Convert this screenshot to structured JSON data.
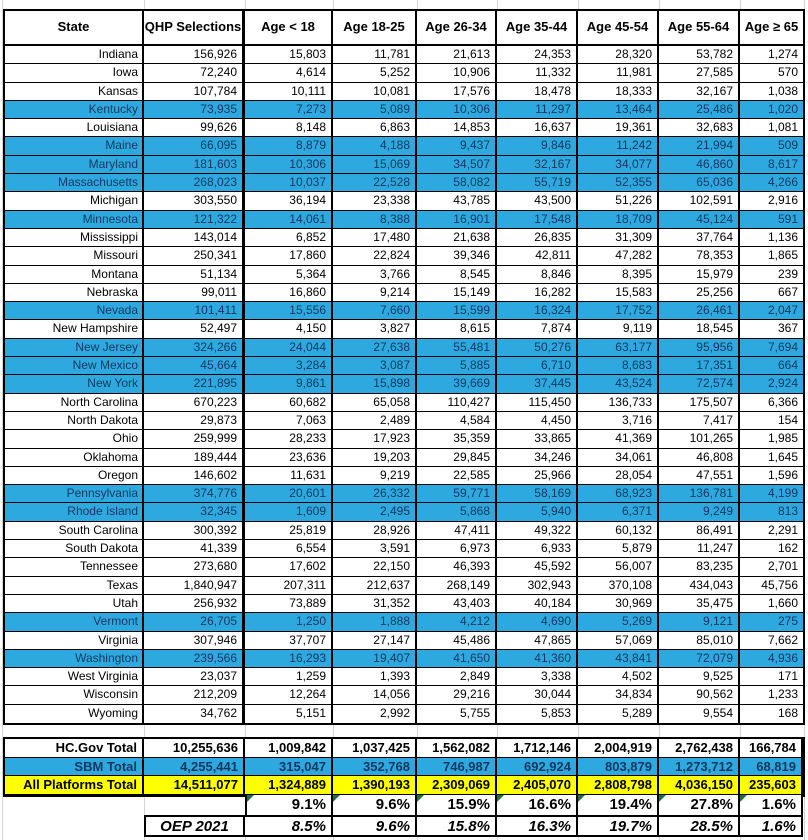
{
  "colors": {
    "highlight_blue": "#2EA9E0",
    "highlight_text": "#17375E",
    "all_platforms_yellow": "#FFFF00",
    "error_flag_green": "#1E7145",
    "gridline_gray": "#D4D4D4"
  },
  "table": {
    "columns": [
      "State",
      "QHP Selections",
      "Age < 18",
      "Age 18-25",
      "Age 26-34",
      "Age 35-44",
      "Age 45-54",
      "Age 55-64",
      "Age ≥ 65"
    ],
    "states": [
      {
        "name": "Indiana",
        "highlight": false,
        "values": [
          "156,926",
          "15,803",
          "11,781",
          "21,613",
          "24,353",
          "28,320",
          "53,782",
          "1,274"
        ]
      },
      {
        "name": "Iowa",
        "highlight": false,
        "values": [
          "72,240",
          "4,614",
          "5,252",
          "10,906",
          "11,332",
          "11,981",
          "27,585",
          "570"
        ]
      },
      {
        "name": "Kansas",
        "highlight": false,
        "values": [
          "107,784",
          "10,111",
          "10,081",
          "17,576",
          "18,478",
          "18,333",
          "32,167",
          "1,038"
        ]
      },
      {
        "name": "Kentucky",
        "highlight": true,
        "values": [
          "73,935",
          "7,273",
          "5,089",
          "10,306",
          "11,297",
          "13,464",
          "25,486",
          "1,020"
        ]
      },
      {
        "name": "Louisiana",
        "highlight": false,
        "values": [
          "99,626",
          "8,148",
          "6,863",
          "14,853",
          "16,637",
          "19,361",
          "32,683",
          "1,081"
        ]
      },
      {
        "name": "Maine",
        "highlight": true,
        "values": [
          "66,095",
          "8,879",
          "4,188",
          "9,437",
          "9,846",
          "11,242",
          "21,994",
          "509"
        ]
      },
      {
        "name": "Maryland",
        "highlight": true,
        "values": [
          "181,603",
          "10,306",
          "15,069",
          "34,507",
          "32,167",
          "34,077",
          "46,860",
          "8,617"
        ]
      },
      {
        "name": "Massachusetts",
        "highlight": true,
        "values": [
          "268,023",
          "10,037",
          "22,528",
          "58,082",
          "55,719",
          "52,355",
          "65,036",
          "4,266"
        ]
      },
      {
        "name": "Michigan",
        "highlight": false,
        "values": [
          "303,550",
          "36,194",
          "23,338",
          "43,785",
          "43,500",
          "51,226",
          "102,591",
          "2,916"
        ]
      },
      {
        "name": "Minnesota",
        "highlight": true,
        "values": [
          "121,322",
          "14,061",
          "8,388",
          "16,901",
          "17,548",
          "18,709",
          "45,124",
          "591"
        ]
      },
      {
        "name": "Mississippi",
        "highlight": false,
        "values": [
          "143,014",
          "6,852",
          "17,480",
          "21,638",
          "26,835",
          "31,309",
          "37,764",
          "1,136"
        ]
      },
      {
        "name": "Missouri",
        "highlight": false,
        "values": [
          "250,341",
          "17,860",
          "22,824",
          "39,346",
          "42,811",
          "47,282",
          "78,353",
          "1,865"
        ]
      },
      {
        "name": "Montana",
        "highlight": false,
        "values": [
          "51,134",
          "5,364",
          "3,766",
          "8,545",
          "8,846",
          "8,395",
          "15,979",
          "239"
        ]
      },
      {
        "name": "Nebraska",
        "highlight": false,
        "values": [
          "99,011",
          "16,860",
          "9,214",
          "15,149",
          "16,282",
          "15,583",
          "25,256",
          "667"
        ]
      },
      {
        "name": "Nevada",
        "highlight": true,
        "values": [
          "101,411",
          "15,556",
          "7,660",
          "15,599",
          "16,324",
          "17,752",
          "26,461",
          "2,047"
        ]
      },
      {
        "name": "New Hampshire",
        "highlight": false,
        "values": [
          "52,497",
          "4,150",
          "3,827",
          "8,615",
          "7,874",
          "9,119",
          "18,545",
          "367"
        ]
      },
      {
        "name": "New Jersey",
        "highlight": true,
        "values": [
          "324,266",
          "24,044",
          "27,638",
          "55,481",
          "50,276",
          "63,177",
          "95,956",
          "7,694"
        ]
      },
      {
        "name": "New Mexico",
        "highlight": true,
        "values": [
          "45,664",
          "3,284",
          "3,087",
          "5,885",
          "6,710",
          "8,683",
          "17,351",
          "664"
        ]
      },
      {
        "name": "New York",
        "highlight": true,
        "values": [
          "221,895",
          "9,861",
          "15,898",
          "39,669",
          "37,445",
          "43,524",
          "72,574",
          "2,924"
        ]
      },
      {
        "name": "North Carolina",
        "highlight": false,
        "values": [
          "670,223",
          "60,682",
          "65,058",
          "110,427",
          "115,450",
          "136,733",
          "175,507",
          "6,366"
        ]
      },
      {
        "name": "North Dakota",
        "highlight": false,
        "values": [
          "29,873",
          "7,063",
          "2,489",
          "4,584",
          "4,450",
          "3,716",
          "7,417",
          "154"
        ]
      },
      {
        "name": "Ohio",
        "highlight": false,
        "values": [
          "259,999",
          "28,233",
          "17,923",
          "35,359",
          "33,865",
          "41,369",
          "101,265",
          "1,985"
        ]
      },
      {
        "name": "Oklahoma",
        "highlight": false,
        "values": [
          "189,444",
          "23,636",
          "19,203",
          "29,845",
          "34,246",
          "34,061",
          "46,808",
          "1,645"
        ]
      },
      {
        "name": "Oregon",
        "highlight": false,
        "values": [
          "146,602",
          "11,631",
          "9,219",
          "22,585",
          "25,966",
          "28,054",
          "47,551",
          "1,596"
        ]
      },
      {
        "name": "Pennsylvania",
        "highlight": true,
        "values": [
          "374,776",
          "20,601",
          "26,332",
          "59,771",
          "58,169",
          "68,923",
          "136,781",
          "4,199"
        ]
      },
      {
        "name": "Rhode Island",
        "highlight": true,
        "values": [
          "32,345",
          "1,609",
          "2,495",
          "5,868",
          "5,940",
          "6,371",
          "9,249",
          "813"
        ]
      },
      {
        "name": "South Carolina",
        "highlight": false,
        "values": [
          "300,392",
          "25,819",
          "28,926",
          "47,411",
          "49,322",
          "60,132",
          "86,491",
          "2,291"
        ]
      },
      {
        "name": "South Dakota",
        "highlight": false,
        "values": [
          "41,339",
          "6,554",
          "3,591",
          "6,973",
          "6,933",
          "5,879",
          "11,247",
          "162"
        ]
      },
      {
        "name": "Tennessee",
        "highlight": false,
        "values": [
          "273,680",
          "17,602",
          "22,150",
          "46,393",
          "45,592",
          "56,007",
          "83,235",
          "2,701"
        ]
      },
      {
        "name": "Texas",
        "highlight": false,
        "values": [
          "1,840,947",
          "207,311",
          "212,637",
          "268,149",
          "302,943",
          "370,108",
          "434,043",
          "45,756"
        ]
      },
      {
        "name": "Utah",
        "highlight": false,
        "values": [
          "256,932",
          "73,889",
          "31,352",
          "43,403",
          "40,184",
          "30,969",
          "35,475",
          "1,660"
        ]
      },
      {
        "name": "Vermont",
        "highlight": true,
        "values": [
          "26,705",
          "1,250",
          "1,888",
          "4,212",
          "4,690",
          "5,269",
          "9,121",
          "275"
        ]
      },
      {
        "name": "Virginia",
        "highlight": false,
        "values": [
          "307,946",
          "37,707",
          "27,147",
          "45,486",
          "47,865",
          "57,069",
          "85,010",
          "7,662"
        ]
      },
      {
        "name": "Washington",
        "highlight": true,
        "values": [
          "239,566",
          "16,293",
          "19,407",
          "41,650",
          "41,360",
          "43,841",
          "72,079",
          "4,936"
        ]
      },
      {
        "name": "West Virginia",
        "highlight": false,
        "values": [
          "23,037",
          "1,259",
          "1,393",
          "2,849",
          "3,338",
          "4,502",
          "9,525",
          "171"
        ]
      },
      {
        "name": "Wisconsin",
        "highlight": false,
        "values": [
          "212,209",
          "12,264",
          "14,056",
          "29,216",
          "30,044",
          "34,834",
          "90,562",
          "1,233"
        ]
      },
      {
        "name": "Wyoming",
        "highlight": false,
        "values": [
          "34,762",
          "5,151",
          "2,992",
          "5,755",
          "5,853",
          "5,289",
          "9,554",
          "168"
        ]
      }
    ],
    "totals": [
      {
        "label": "HC.Gov Total",
        "style": "hcgov",
        "values": [
          "10,255,636",
          "1,009,842",
          "1,037,425",
          "1,562,082",
          "1,712,146",
          "2,004,919",
          "2,762,438",
          "166,784"
        ]
      },
      {
        "label": "SBM Total",
        "style": "sbm",
        "values": [
          "4,255,441",
          "315,047",
          "352,768",
          "746,987",
          "692,924",
          "803,879",
          "1,273,712",
          "68,819"
        ]
      },
      {
        "label": "All Platforms Total",
        "style": "allp",
        "values": [
          "14,511,077",
          "1,324,889",
          "1,390,193",
          "2,309,069",
          "2,405,070",
          "2,808,798",
          "4,036,150",
          "235,603"
        ]
      }
    ],
    "percent_row": {
      "values": [
        "9.1%",
        "9.6%",
        "15.9%",
        "16.6%",
        "19.4%",
        "27.8%",
        "1.6%"
      ]
    },
    "oep_row": {
      "label": "OEP 2021",
      "values": [
        "8.5%",
        "9.6%",
        "15.8%",
        "16.3%",
        "19.7%",
        "28.5%",
        "1.6%"
      ]
    }
  }
}
